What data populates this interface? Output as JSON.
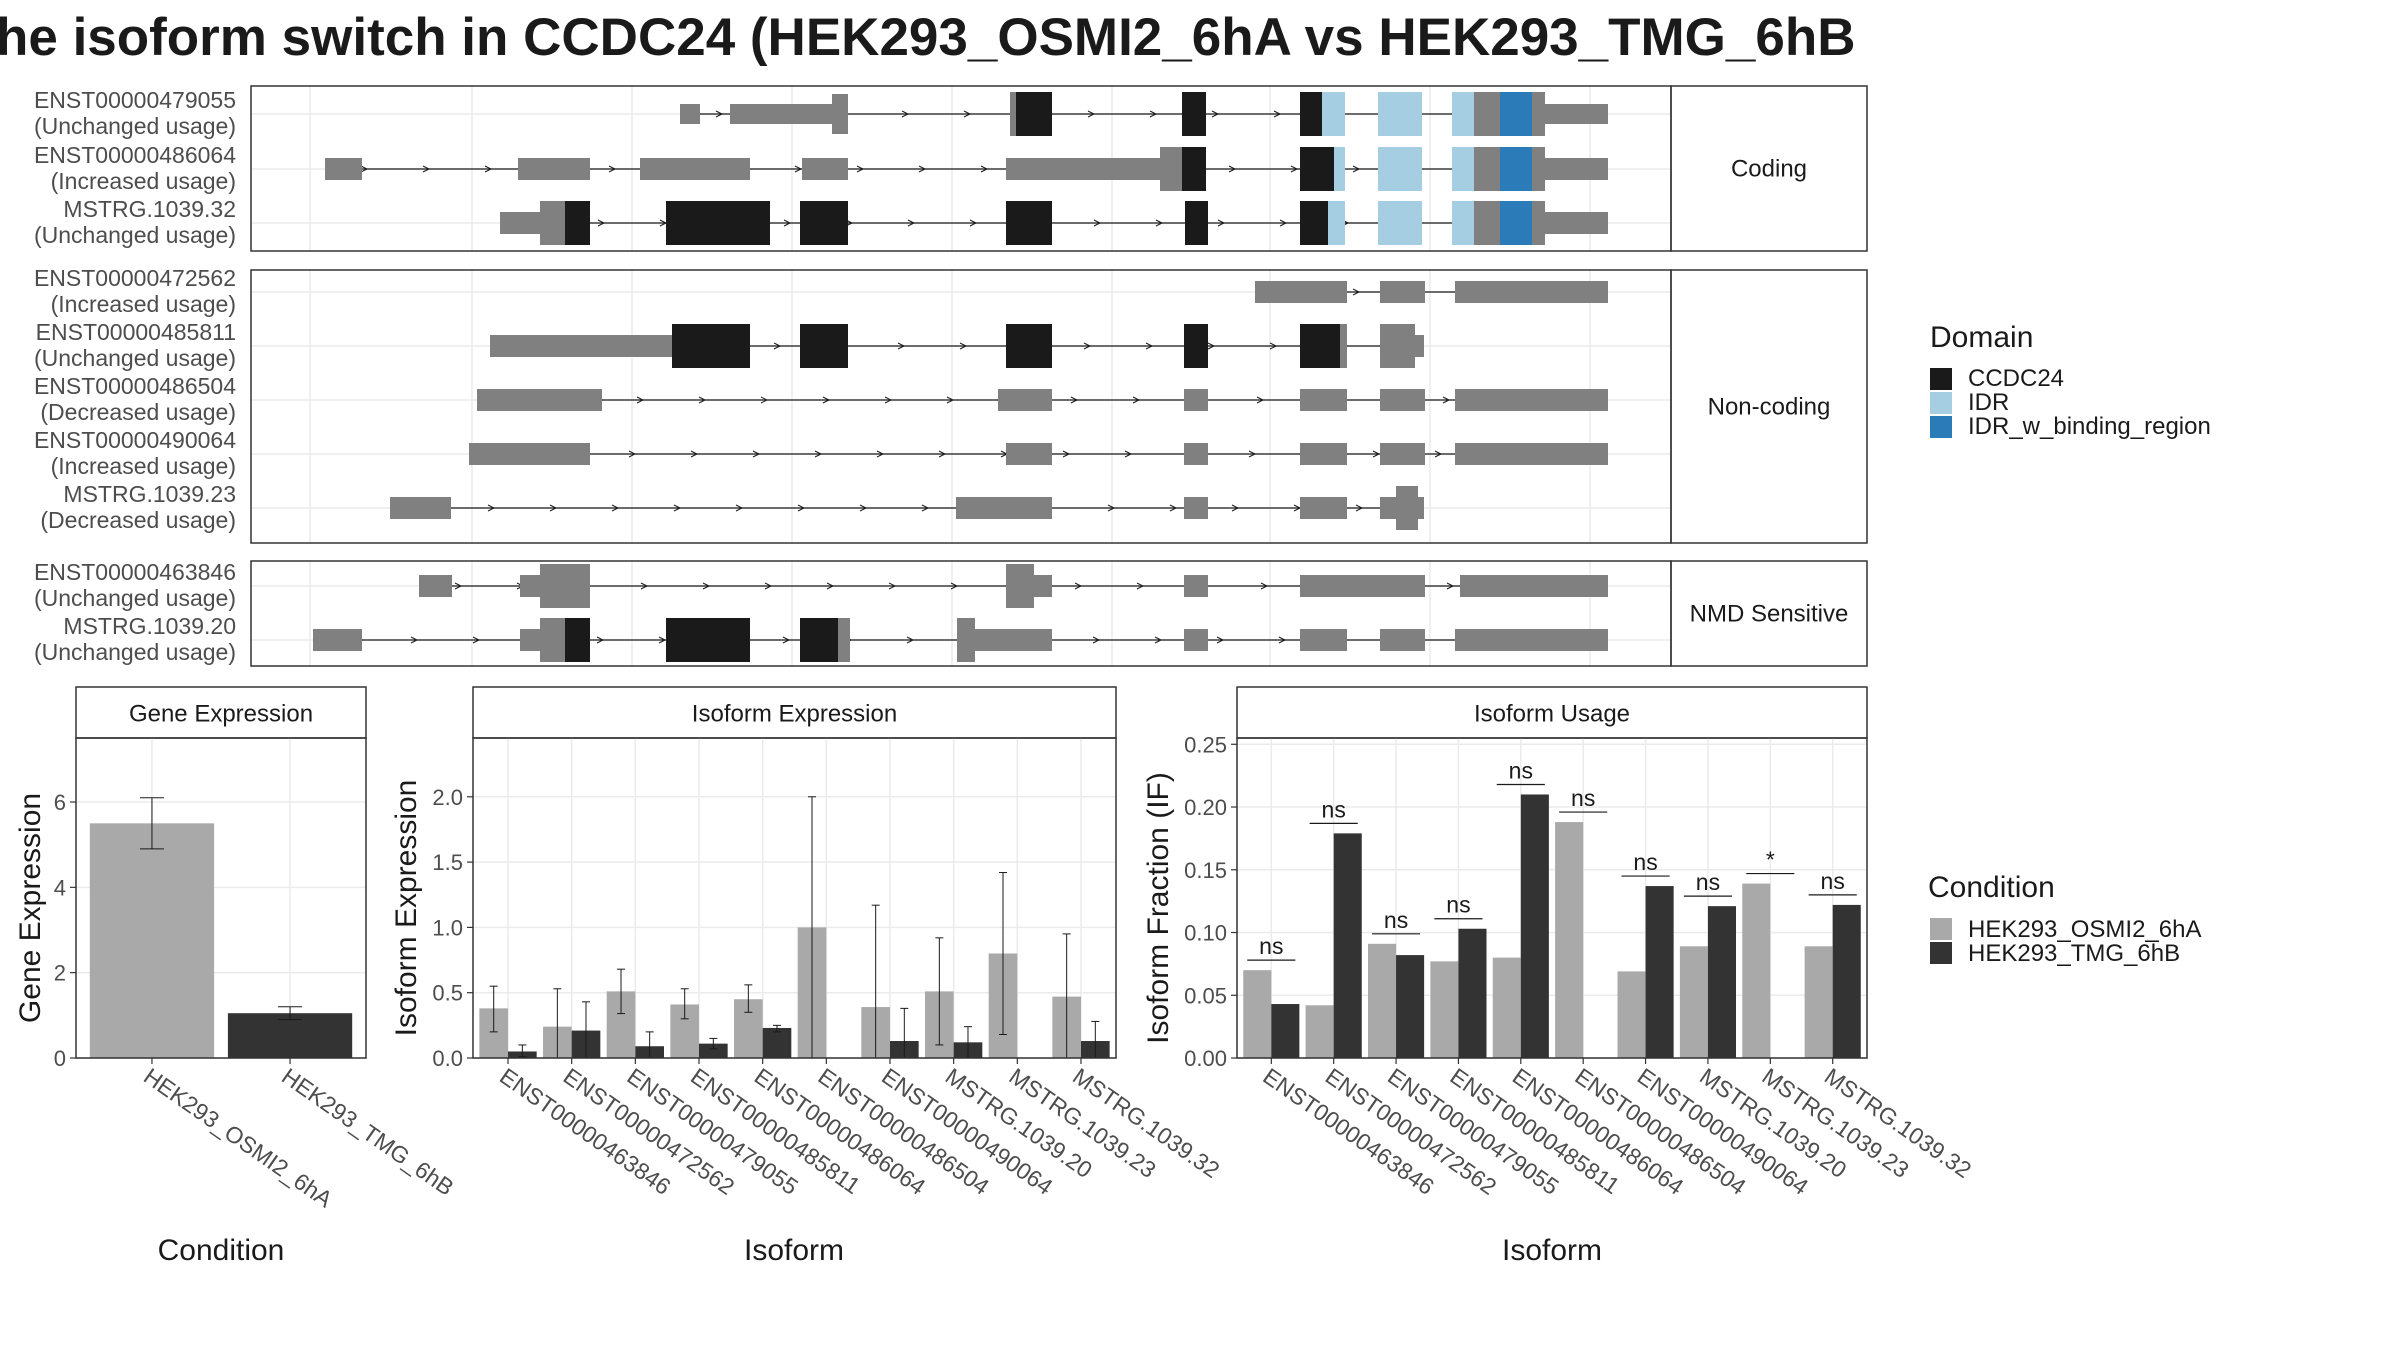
{
  "title": "he isoform switch in CCDC24 (HEK293_OSMI2_6hA vs HEK293_TMG_6hB",
  "colors": {
    "ccdc24": "#1a1a1a",
    "idr": "#a6cee3",
    "idr_binding": "#2b7bb9",
    "utr_gray": "#808080",
    "osmi2": "#a9a9a9",
    "tmg": "#333333"
  },
  "structure": {
    "legend_title": "Domain",
    "legend_items": [
      {
        "label": "CCDC24",
        "color": "#1a1a1a"
      },
      {
        "label": "IDR",
        "color": "#a6cee3"
      },
      {
        "label": "IDR_w_binding_region",
        "color": "#2b7bb9"
      }
    ],
    "panels": [
      {
        "label": "Coding",
        "rows": [
          {
            "id": "ENST00000479055",
            "usage": "(Unchanged usage)"
          },
          {
            "id": "ENST00000486064",
            "usage": "(Increased usage)"
          },
          {
            "id": "MSTRG.1039.32",
            "usage": "(Unchanged usage)"
          }
        ]
      },
      {
        "label": "Non-coding",
        "rows": [
          {
            "id": "ENST00000472562",
            "usage": "(Increased usage)"
          },
          {
            "id": "ENST00000485811",
            "usage": "(Unchanged usage)"
          },
          {
            "id": "ENST00000486504",
            "usage": "(Decreased usage)"
          },
          {
            "id": "ENST00000490064",
            "usage": "(Increased usage)"
          },
          {
            "id": "MSTRG.1039.23",
            "usage": "(Decreased usage)"
          }
        ]
      },
      {
        "label": "NMD Sensitive",
        "rows": [
          {
            "id": "ENST00000463846",
            "usage": "(Unchanged usage)"
          },
          {
            "id": "MSTRG.1039.20",
            "usage": "(Unchanged usage)"
          }
        ]
      }
    ]
  },
  "condition_legend": {
    "title": "Condition",
    "items": [
      {
        "label": "HEK293_OSMI2_6hA",
        "color": "#a9a9a9"
      },
      {
        "label": "HEK293_TMG_6hB",
        "color": "#333333"
      }
    ]
  },
  "chart_data": [
    {
      "type": "bar",
      "title": "Gene Expression",
      "xlabel": "Condition",
      "ylabel": "Gene Expression",
      "ylim": [
        0,
        7.5
      ],
      "yticks": [
        0,
        2,
        4,
        6
      ],
      "categories": [
        "HEK293_OSMI2_6hA",
        "HEK293_TMG_6hB"
      ],
      "values": [
        5.5,
        1.05
      ],
      "err_low": [
        4.9,
        0.9
      ],
      "err_high": [
        6.1,
        1.2
      ]
    },
    {
      "type": "bar",
      "title": "Isoform Expression",
      "xlabel": "Isoform",
      "ylabel": "Isoform Expression",
      "ylim": [
        0,
        2.45
      ],
      "yticks": [
        0.0,
        0.5,
        1.0,
        1.5,
        2.0
      ],
      "categories": [
        "ENST00000463846",
        "ENST00000472562",
        "ENST00000479055",
        "ENST00000485811",
        "ENST00000486064",
        "ENST00000486504",
        "ENST00000490064",
        "MSTRG.1039.20",
        "MSTRG.1039.23",
        "MSTRG.1039.32"
      ],
      "series": [
        {
          "name": "HEK293_OSMI2_6hA",
          "values": [
            0.38,
            0.24,
            0.51,
            0.41,
            0.45,
            1.0,
            0.39,
            0.51,
            0.8,
            0.47
          ],
          "err_low": [
            0.2,
            0.0,
            0.34,
            0.3,
            0.35,
            0.0,
            0.0,
            0.1,
            0.18,
            0.0
          ],
          "err_high": [
            0.55,
            0.53,
            0.68,
            0.53,
            0.56,
            2.0,
            1.17,
            0.92,
            1.42,
            0.95
          ]
        },
        {
          "name": "HEK293_TMG_6hB",
          "values": [
            0.05,
            0.21,
            0.09,
            0.11,
            0.23,
            0.0,
            0.13,
            0.12,
            0.0,
            0.13
          ],
          "err_low": [
            0.01,
            0.0,
            0.0,
            0.07,
            0.2,
            0.0,
            0.0,
            0.0,
            0.0,
            0.0
          ],
          "err_high": [
            0.1,
            0.43,
            0.2,
            0.15,
            0.25,
            0.0,
            0.38,
            0.24,
            0.0,
            0.28
          ]
        }
      ]
    },
    {
      "type": "bar",
      "title": "Isoform Usage",
      "xlabel": "Isoform",
      "ylabel": "Isoform Fraction (IF)",
      "ylim": [
        0,
        0.255
      ],
      "yticks": [
        0.0,
        0.05,
        0.1,
        0.15,
        0.2,
        0.25
      ],
      "categories": [
        "ENST00000463846",
        "ENST00000472562",
        "ENST00000479055",
        "ENST00000485811",
        "ENST00000486064",
        "ENST00000486504",
        "ENST00000490064",
        "MSTRG.1039.20",
        "MSTRG.1039.23",
        "MSTRG.1039.32"
      ],
      "series": [
        {
          "name": "HEK293_OSMI2_6hA",
          "values": [
            0.07,
            0.042,
            0.091,
            0.077,
            0.08,
            0.188,
            0.069,
            0.089,
            0.139,
            0.089
          ]
        },
        {
          "name": "HEK293_TMG_6hB",
          "values": [
            0.043,
            0.179,
            0.082,
            0.103,
            0.21,
            0.0,
            0.137,
            0.121,
            0.0,
            0.122
          ]
        }
      ],
      "annotations": [
        "ns",
        "ns",
        "ns",
        "ns",
        "ns",
        "ns",
        "ns",
        "ns",
        "*",
        "ns"
      ]
    }
  ]
}
